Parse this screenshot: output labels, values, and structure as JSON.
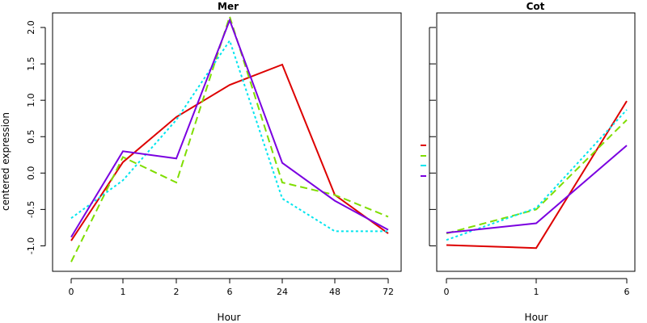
{
  "figure": {
    "ylabel": "centered expression",
    "colors": {
      "red": "#dd0000",
      "green": "#7fdd00",
      "cyan": "#00e5ee",
      "purple": "#7a00e0"
    }
  },
  "chart_data": [
    {
      "type": "line",
      "title": "Mer",
      "xlabel": "Hour",
      "ylabel": "centered expression",
      "categories": [
        "0",
        "1",
        "2",
        "6",
        "24",
        "48",
        "72"
      ],
      "ylim": [
        -1.35,
        2.2
      ],
      "yticks": [
        "-1.0",
        "-0.5",
        "0.0",
        "0.5",
        "1.0",
        "1.5",
        "2.0"
      ],
      "grid": false,
      "series": [
        {
          "color": "#dd0000",
          "dash": "solid",
          "values": [
            -0.93,
            0.15,
            0.77,
            1.21,
            1.49,
            -0.3,
            -0.83
          ]
        },
        {
          "color": "#7fdd00",
          "dash": "dashed",
          "values": [
            -1.22,
            0.22,
            -0.13,
            2.15,
            -0.13,
            -0.3,
            -0.6
          ]
        },
        {
          "color": "#00e5ee",
          "dash": "dotted",
          "values": [
            -0.62,
            -0.1,
            0.73,
            1.82,
            -0.35,
            -0.8,
            -0.8
          ]
        },
        {
          "color": "#7a00e0",
          "dash": "solid",
          "values": [
            -0.88,
            0.3,
            0.2,
            2.1,
            0.14,
            -0.38,
            -0.78
          ]
        }
      ]
    },
    {
      "type": "line",
      "title": "Cot",
      "xlabel": "Hour",
      "categories": [
        "0",
        "1",
        "6"
      ],
      "ylim": [
        -1.35,
        2.2
      ],
      "legend": "left",
      "grid": false,
      "series": [
        {
          "color": "#dd0000",
          "dash": "solid",
          "values": [
            -0.99,
            -1.03,
            0.99
          ]
        },
        {
          "color": "#7fdd00",
          "dash": "dashed",
          "values": [
            -0.83,
            -0.5,
            0.73
          ]
        },
        {
          "color": "#00e5ee",
          "dash": "dotted",
          "values": [
            -0.92,
            -0.48,
            0.87
          ]
        },
        {
          "color": "#7a00e0",
          "dash": "solid",
          "values": [
            -0.82,
            -0.69,
            0.38
          ]
        }
      ]
    }
  ]
}
